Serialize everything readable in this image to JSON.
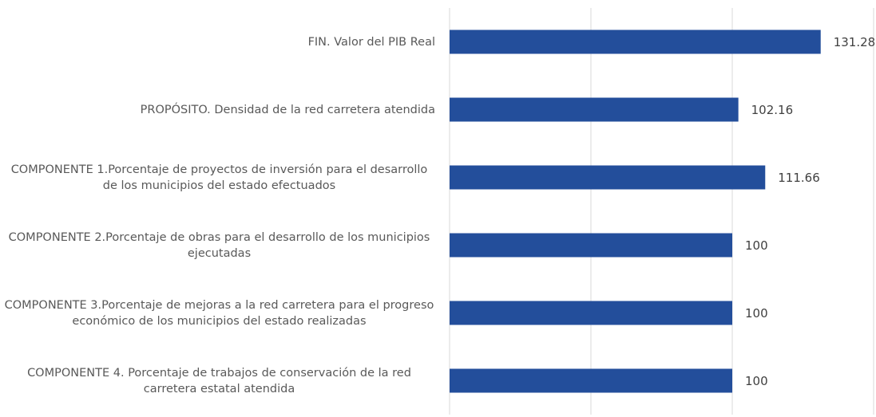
{
  "chart_data": {
    "type": "bar",
    "orientation": "horizontal",
    "categories": [
      "FIN. Valor del PIB Real",
      "PROPÓSITO. Densidad de la red carretera atendida",
      "COMPONENTE 1.Porcentaje de proyectos de inversión para el desarrollo de los municipios del estado efectuados",
      "COMPONENTE 2.Porcentaje de obras para el desarrollo de los municipios ejecutadas",
      "COMPONENTE 3.Porcentaje de mejoras a la red carretera para el progreso económico de los municipios del estado realizadas",
      "COMPONENTE 4. Porcentaje de trabajos de conservación de la red carretera estatal atendida"
    ],
    "values": [
      131.28,
      102.16,
      111.66,
      100,
      100,
      100
    ],
    "color": "#234e9b",
    "xlim": [
      0,
      150
    ],
    "xticks": [
      0,
      50,
      100,
      150
    ],
    "grid": true
  }
}
